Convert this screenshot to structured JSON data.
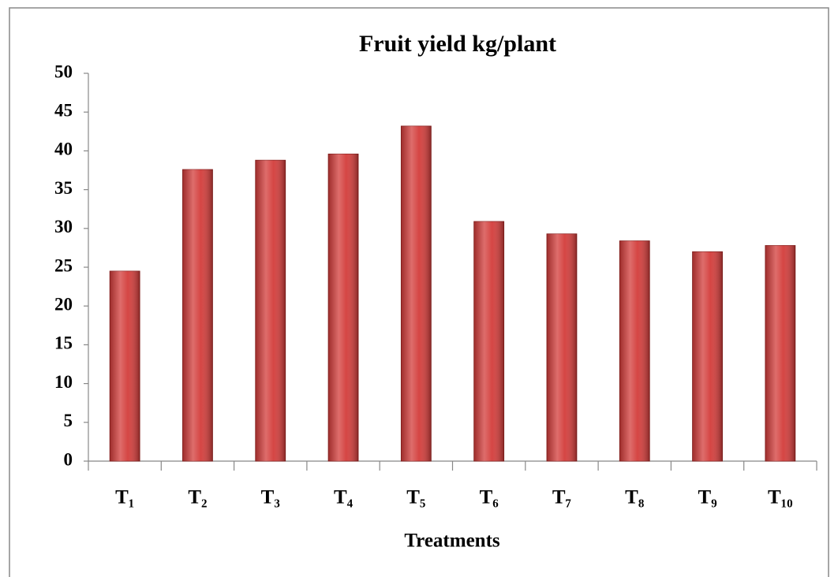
{
  "chart_data": {
    "type": "bar",
    "title": "Fruit yield kg/plant",
    "x_label": "Treatments",
    "categories": [
      "T₁",
      "T₂",
      "T₃",
      "T₄",
      "T₅",
      "T₆",
      "T₇",
      "T₈",
      "T₉",
      "T₁₀"
    ],
    "values": [
      24.5,
      37.6,
      38.8,
      39.6,
      43.2,
      30.9,
      29.3,
      28.4,
      27.0,
      27.8
    ],
    "color": "#d33c3a",
    "ylim": [
      0,
      50
    ],
    "yticks": [
      0,
      5,
      10,
      15,
      20,
      25,
      30,
      35,
      40,
      45,
      50
    ],
    "grid": false
  }
}
